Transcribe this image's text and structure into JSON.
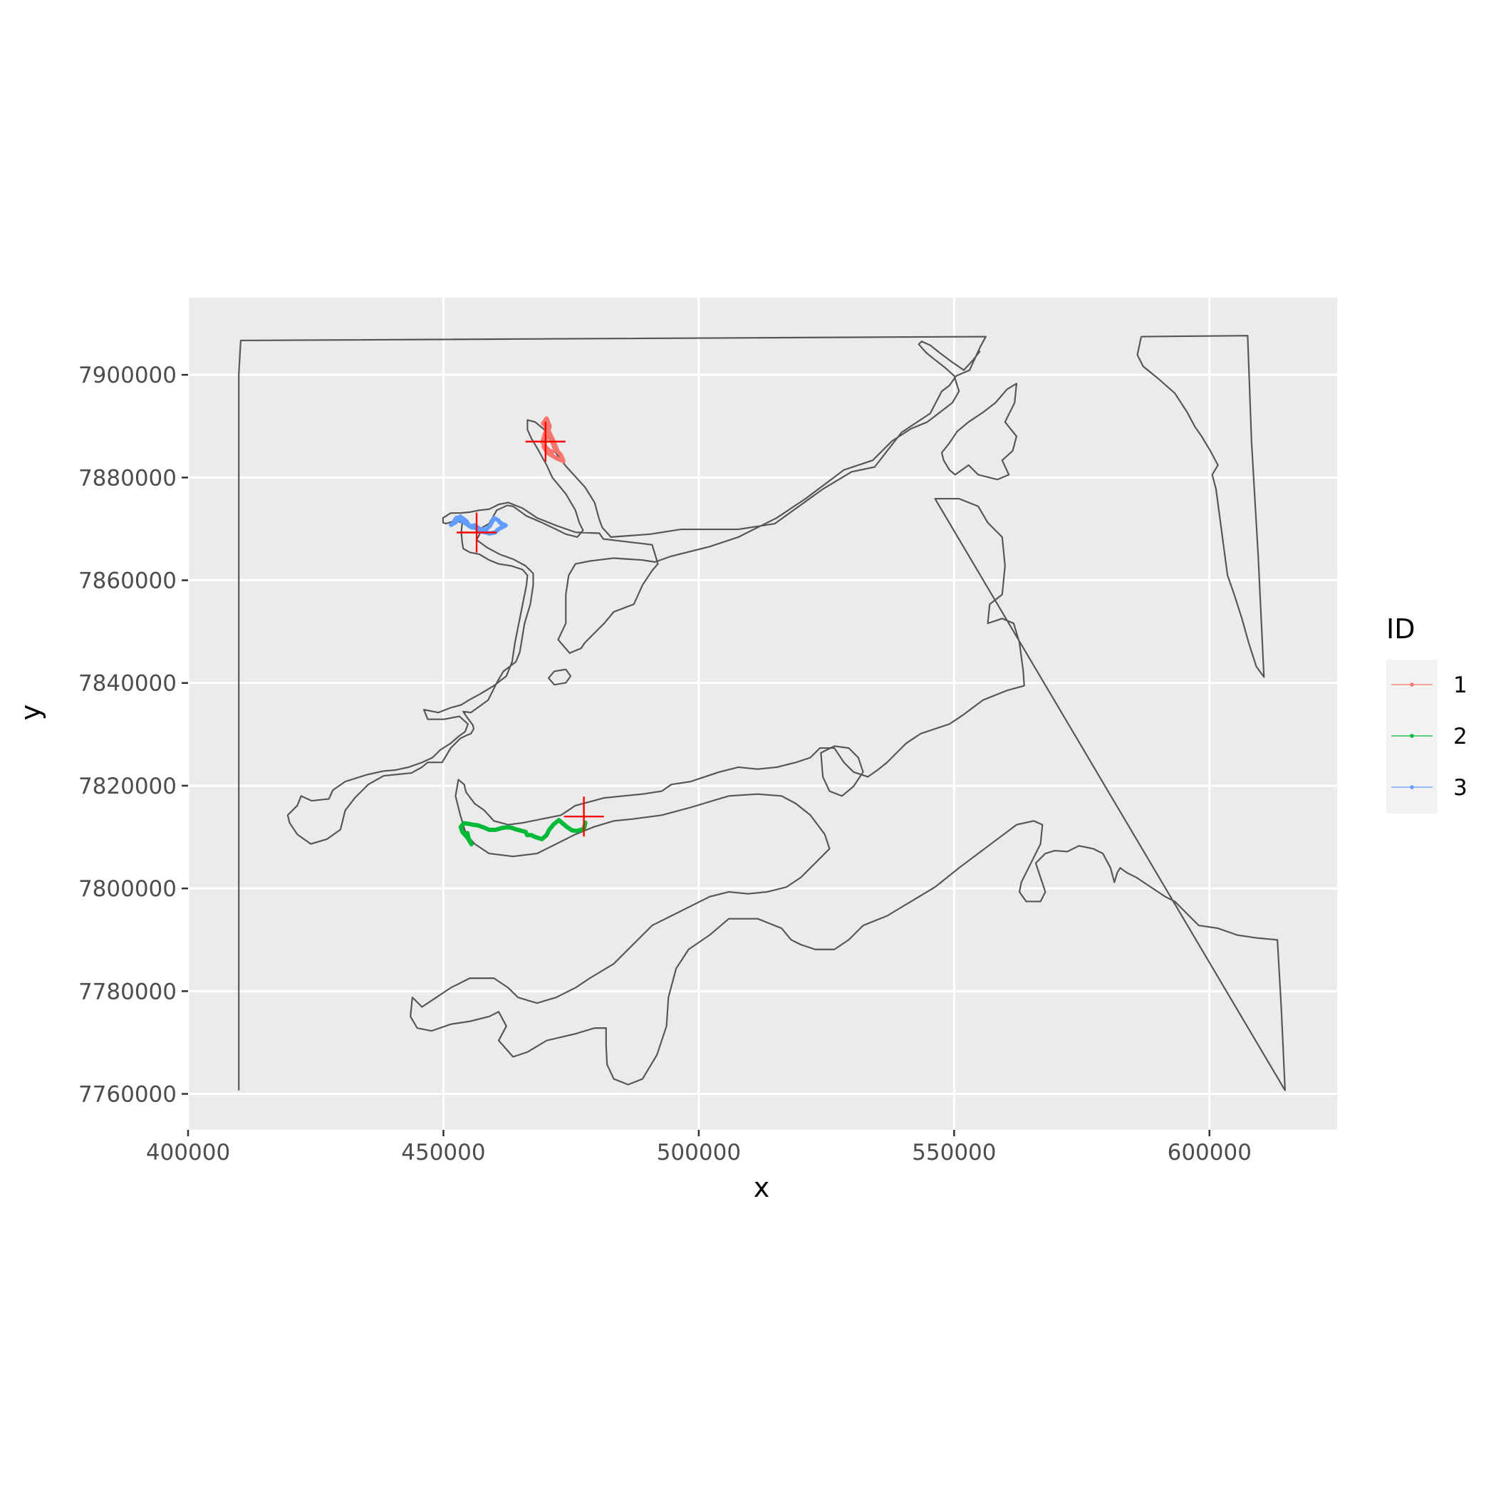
{
  "chart_data": {
    "type": "map",
    "xlabel": "x",
    "ylabel": "y",
    "xlim": [
      400000,
      625000
    ],
    "ylim": [
      7753000,
      7915000
    ],
    "x_ticks": [
      400000,
      450000,
      500000,
      550000,
      600000
    ],
    "x_tick_labels": [
      "400000",
      "450000",
      "500000",
      "550000",
      "600000"
    ],
    "y_ticks": [
      7760000,
      7780000,
      7800000,
      7820000,
      7840000,
      7860000,
      7880000,
      7900000
    ],
    "y_tick_labels": [
      "7760000",
      "7780000",
      "7800000",
      "7820000",
      "7840000",
      "7860000",
      "7880000",
      "7900000"
    ],
    "grid": true,
    "legend": {
      "title": "ID",
      "position": "right",
      "entries": [
        {
          "label": "1",
          "color": "#F8766D"
        },
        {
          "label": "2",
          "color": "#00BA38"
        },
        {
          "label": "3",
          "color": "#619CFF"
        }
      ]
    },
    "tracks": [
      {
        "id": "1",
        "color": "#F8766D",
        "points": [
          [
            469500,
            7890500
          ],
          [
            470200,
            7891500
          ],
          [
            470800,
            7890000
          ],
          [
            470100,
            7887500
          ],
          [
            469600,
            7886000
          ],
          [
            470400,
            7884800
          ],
          [
            471400,
            7884200
          ],
          [
            472300,
            7883700
          ],
          [
            473500,
            7883200
          ],
          [
            473000,
            7884400
          ],
          [
            471900,
            7885600
          ],
          [
            471300,
            7886900
          ],
          [
            470900,
            7888400
          ],
          [
            470400,
            7889600
          ],
          [
            469800,
            7888400
          ],
          [
            469400,
            7886900
          ],
          [
            470200,
            7885700
          ],
          [
            471200,
            7884900
          ],
          [
            472200,
            7885500
          ],
          [
            471500,
            7887200
          ],
          [
            470500,
            7889300
          ],
          [
            469800,
            7890200
          ]
        ]
      },
      {
        "id": "2",
        "color": "#00BA38",
        "points": [
          [
            477800,
            7812800
          ],
          [
            477500,
            7811600
          ],
          [
            476200,
            7811200
          ],
          [
            475200,
            7811300
          ],
          [
            474000,
            7812100
          ],
          [
            472600,
            7813300
          ],
          [
            471500,
            7812400
          ],
          [
            470700,
            7811400
          ],
          [
            470200,
            7810400
          ],
          [
            469300,
            7809600
          ],
          [
            468000,
            7810000
          ],
          [
            467200,
            7810400
          ],
          [
            466400,
            7810400
          ],
          [
            466100,
            7811000
          ],
          [
            465000,
            7811300
          ],
          [
            464200,
            7811500
          ],
          [
            463400,
            7811800
          ],
          [
            462500,
            7811900
          ],
          [
            461500,
            7811800
          ],
          [
            460200,
            7811400
          ],
          [
            459000,
            7811400
          ],
          [
            457800,
            7811900
          ],
          [
            456700,
            7812300
          ],
          [
            455800,
            7812400
          ],
          [
            454800,
            7812600
          ],
          [
            454000,
            7812700
          ],
          [
            453400,
            7812000
          ],
          [
            453700,
            7811000
          ],
          [
            454600,
            7810000
          ],
          [
            455200,
            7809200
          ],
          [
            455500,
            7808600
          ],
          [
            455000,
            7809400
          ],
          [
            454700,
            7810800
          ]
        ]
      },
      {
        "id": "3",
        "color": "#619CFF",
        "points": [
          [
            451500,
            7870800
          ],
          [
            452400,
            7871300
          ],
          [
            453300,
            7872400
          ],
          [
            454500,
            7871500
          ],
          [
            455100,
            7870500
          ],
          [
            456200,
            7870700
          ],
          [
            457100,
            7870000
          ],
          [
            458300,
            7869800
          ],
          [
            459200,
            7870700
          ],
          [
            459900,
            7872100
          ],
          [
            460700,
            7871700
          ],
          [
            461200,
            7871100
          ],
          [
            462200,
            7870700
          ],
          [
            461400,
            7870300
          ],
          [
            460700,
            7869900
          ],
          [
            460100,
            7869300
          ],
          [
            459000,
            7869100
          ],
          [
            458000,
            7869400
          ],
          [
            457200,
            7869500
          ],
          [
            456300,
            7870200
          ],
          [
            455500,
            7870300
          ],
          [
            454600,
            7870900
          ],
          [
            453600,
            7871600
          ],
          [
            452600,
            7872200
          ],
          [
            452000,
            7871400
          ]
        ]
      }
    ],
    "centroids": [
      {
        "id": "1",
        "x": 470000,
        "y": 7887000
      },
      {
        "id": "2",
        "x": 477500,
        "y": 7814000
      },
      {
        "id": "3",
        "x": 456500,
        "y": 7869300
      }
    ]
  }
}
